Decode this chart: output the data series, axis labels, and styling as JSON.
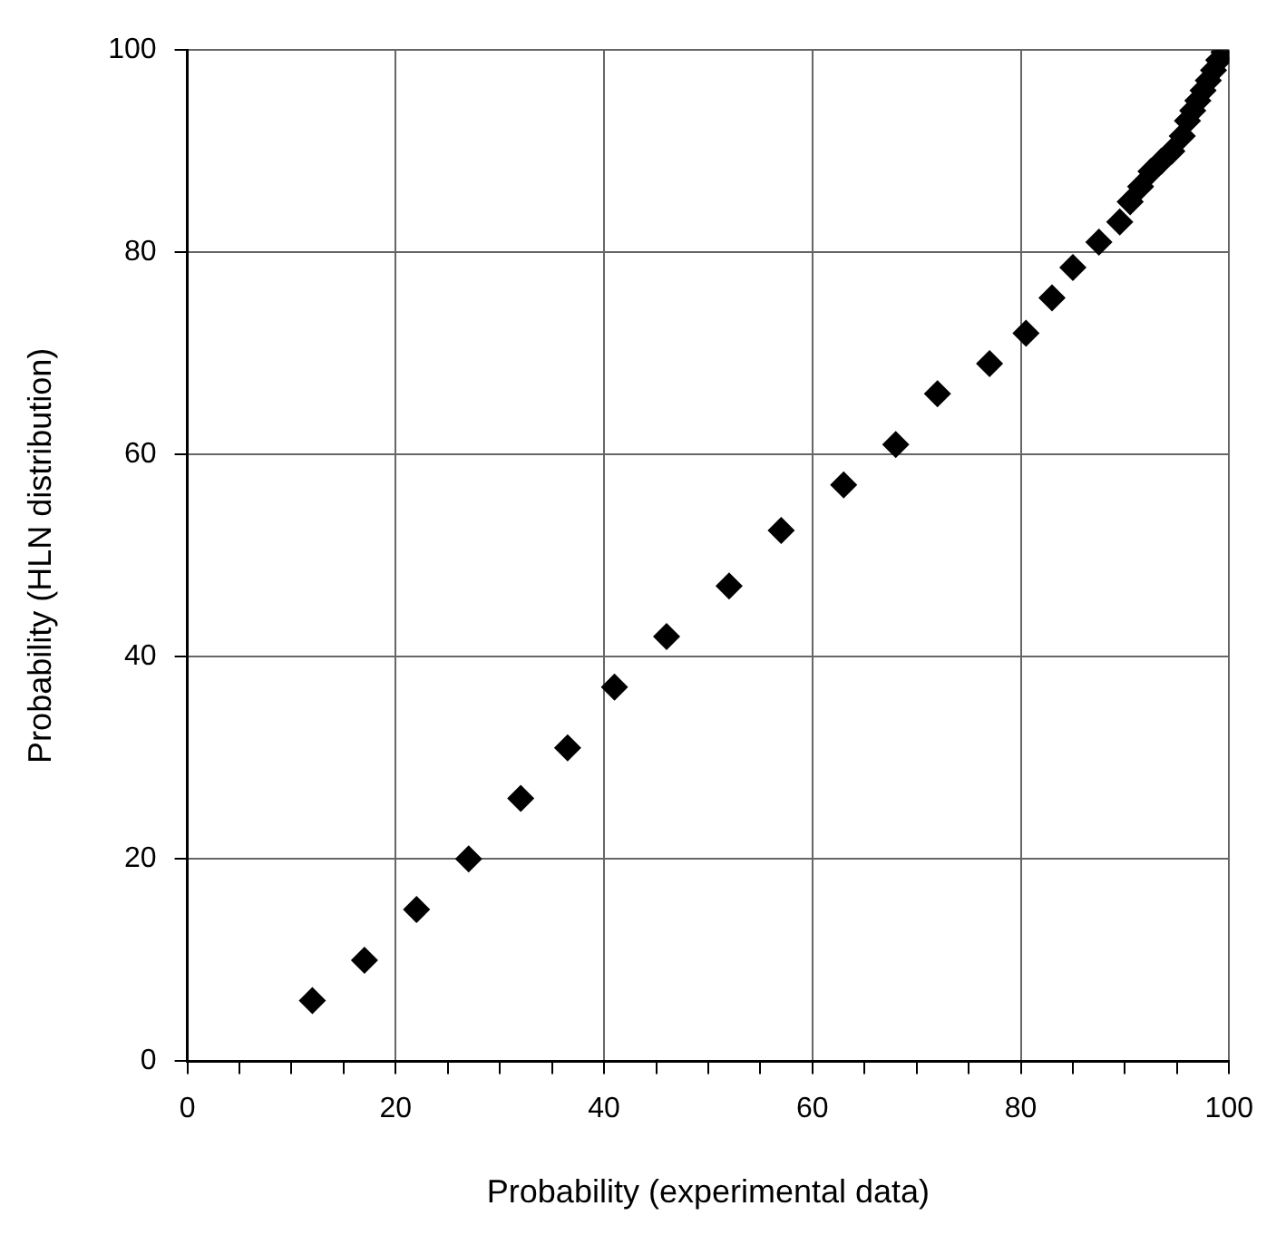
{
  "chart_data": {
    "type": "scatter",
    "xlabel": "Probability (experimental data)",
    "ylabel": "Probability (HLN distribution)",
    "series": [
      {
        "color": "#000000",
        "x": [
          12,
          17,
          22,
          27,
          32,
          36.5,
          41,
          46,
          52,
          57,
          63,
          68,
          72,
          77,
          80.5,
          83,
          85,
          87.5,
          89.5,
          90.5,
          91.5,
          92.5,
          93.5,
          94.5,
          95.5,
          96,
          96.5,
          97,
          97.5,
          98,
          98.5,
          99,
          99.5
        ],
        "values": [
          6,
          10,
          15,
          20,
          26,
          31,
          37,
          42,
          47,
          52.5,
          57,
          61,
          66,
          69,
          72,
          75.5,
          78.5,
          81,
          83,
          85,
          86.5,
          88,
          89,
          90,
          91.5,
          93,
          94,
          95,
          96,
          97,
          98,
          99,
          99.8
        ]
      }
    ],
    "xlim": [
      0,
      100
    ],
    "ylim": [
      0,
      100
    ],
    "xticks": [
      0,
      {
        "value": 5,
        "label": null
      },
      20,
      {
        "value": 10,
        "label": null
      },
      {
        "value": 15,
        "label": null
      },
      {
        "value": 25,
        "label": null
      },
      {
        "value": 30,
        "label": null
      },
      {
        "value": 35,
        "label": null
      },
      40,
      {
        "value": 45,
        "label": null
      },
      {
        "value": 50,
        "label": null
      },
      {
        "value": 55,
        "label": null
      },
      60,
      {
        "value": 65,
        "label": null
      },
      {
        "value": 70,
        "label": null
      },
      {
        "value": 75,
        "label": null
      },
      80,
      {
        "value": 85,
        "label": null
      },
      {
        "value": 90,
        "label": null
      },
      {
        "value": 95,
        "label": null
      },
      100
    ],
    "yticks": [
      0,
      20,
      40,
      60,
      80,
      100
    ],
    "grid": true,
    "marker": "diamond",
    "legend": false
  }
}
